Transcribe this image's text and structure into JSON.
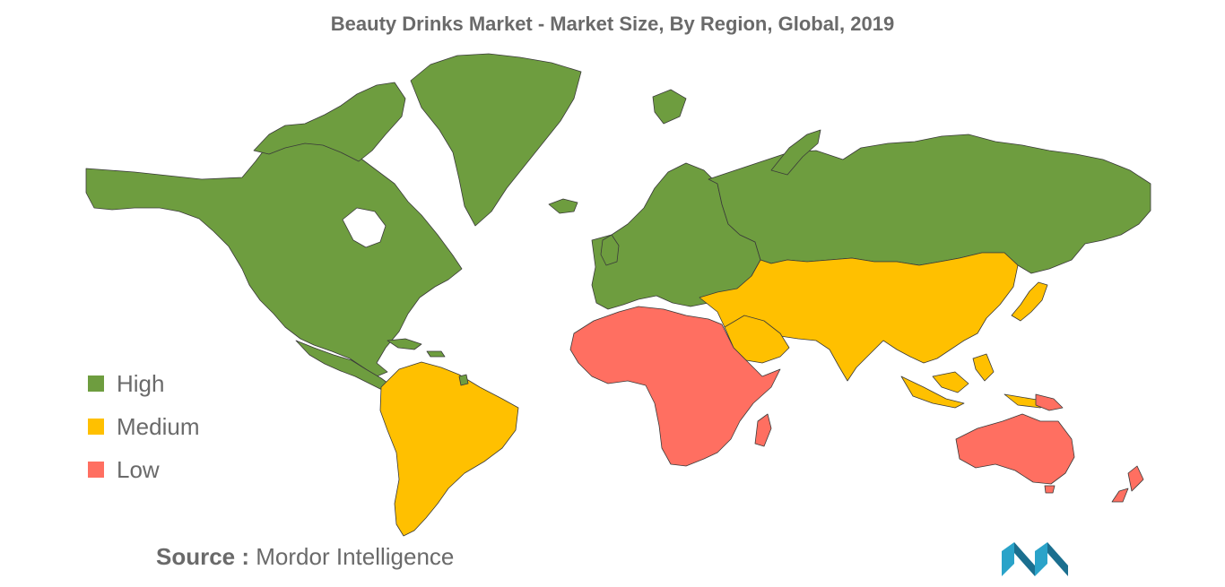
{
  "title": "Beauty Drinks Market - Market Size, By Region, Global, 2019",
  "legend": [
    {
      "label": "High",
      "color": "#6e9d3f"
    },
    {
      "label": "Medium",
      "color": "#ffc000"
    },
    {
      "label": "Low",
      "color": "#ff6f61"
    }
  ],
  "regions": {
    "north_america": "High",
    "greenland": "High",
    "europe": "High",
    "russia": "High",
    "south_america": "Medium",
    "middle_east": "Medium",
    "asia": "Medium",
    "southeast_asia": "Medium",
    "africa": "Low",
    "oceania": "Low"
  },
  "source": {
    "label": "Source :",
    "value": "Mordor Intelligence"
  },
  "colors": {
    "border": "#3a3a3a",
    "text": "#6a6a6a",
    "logo": "#2aa3c9"
  }
}
